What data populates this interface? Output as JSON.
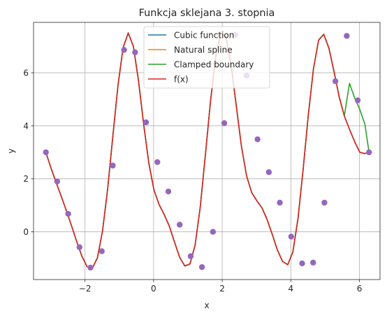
{
  "chart_data": {
    "type": "line",
    "title": "Funkcja sklejana 3. stopnia",
    "xlabel": "x",
    "ylabel": "y",
    "xlim": [
      -3.5,
      6.6
    ],
    "ylim": [
      -1.8,
      7.9
    ],
    "xticks": [
      -2,
      0,
      2,
      4,
      6
    ],
    "yticks": [
      0,
      2,
      4,
      6
    ],
    "grid": true,
    "legend_position": "top-center",
    "series": [
      {
        "name": "Cubic function",
        "color": "#1f77b4"
      },
      {
        "name": "Natural spline",
        "color": "#ff7f0e"
      },
      {
        "name": "Clamped boundary",
        "color": "#2ca02c"
      },
      {
        "name": "f(x)",
        "color": "#d62728"
      }
    ],
    "curve_x": [
      -3.14,
      -2.99,
      -2.84,
      -2.69,
      -2.54,
      -2.39,
      -2.24,
      -2.09,
      -1.94,
      -1.79,
      -1.64,
      -1.49,
      -1.34,
      -1.19,
      -1.04,
      -0.89,
      -0.74,
      -0.59,
      -0.44,
      -0.29,
      -0.14,
      0.01,
      0.16,
      0.31,
      0.46,
      0.61,
      0.76,
      0.91,
      1.06,
      1.21,
      1.36,
      1.51,
      1.66,
      1.81,
      1.96,
      2.11,
      2.26,
      2.41,
      2.56,
      2.71,
      2.86,
      3.01,
      3.16,
      3.31,
      3.46,
      3.61,
      3.76,
      3.91,
      4.06,
      4.21,
      4.36,
      4.51,
      4.66,
      4.81,
      4.96,
      5.11,
      5.26,
      5.41,
      5.56,
      5.71,
      5.86,
      6.01,
      6.16,
      6.28
    ],
    "curve_y": [
      3.0,
      2.4,
      1.86,
      1.33,
      0.79,
      0.22,
      -0.37,
      -0.92,
      -1.31,
      -1.38,
      -0.99,
      0.02,
      1.61,
      3.58,
      5.5,
      6.94,
      7.5,
      7.0,
      5.7,
      4.06,
      2.6,
      1.58,
      1.03,
      0.65,
      0.21,
      -0.39,
      -0.96,
      -1.29,
      -1.21,
      -0.5,
      0.94,
      2.91,
      4.94,
      6.6,
      7.49,
      7.35,
      6.3,
      4.75,
      3.23,
      2.11,
      1.48,
      1.17,
      0.9,
      0.46,
      -0.1,
      -0.69,
      -1.12,
      -1.24,
      -0.76,
      0.51,
      2.37,
      4.41,
      6.15,
      7.23,
      7.45,
      6.93,
      6.04,
      5.09,
      4.37,
      3.87,
      3.4,
      3.0,
      2.95,
      3.0
    ],
    "clamped_tail_x": [
      5.71,
      5.86,
      6.01,
      6.16,
      6.28
    ],
    "clamped_tail_y": [
      5.6,
      5.05,
      4.62,
      4.05,
      3.0
    ],
    "nodes": {
      "color": "#9467bd",
      "x": [
        -3.14,
        -2.81,
        -2.49,
        -2.16,
        -1.84,
        -1.51,
        -1.19,
        -0.86,
        -0.54,
        -0.22,
        0.11,
        0.43,
        0.76,
        1.08,
        1.41,
        1.73,
        2.06,
        2.38,
        2.71,
        3.03,
        3.36,
        3.68,
        4.01,
        4.33,
        4.65,
        4.98,
        5.3,
        5.63,
        5.95,
        6.28
      ],
      "y": [
        3.0,
        1.9,
        0.68,
        -0.58,
        -1.35,
        -0.73,
        2.5,
        6.86,
        6.77,
        4.13,
        2.63,
        1.52,
        0.27,
        -0.92,
        -1.33,
        0.0,
        4.1,
        7.43,
        5.89,
        3.49,
        2.25,
        1.1,
        -0.18,
        -1.19,
        -1.16,
        1.1,
        5.68,
        7.39,
        4.96,
        3.0
      ]
    }
  }
}
